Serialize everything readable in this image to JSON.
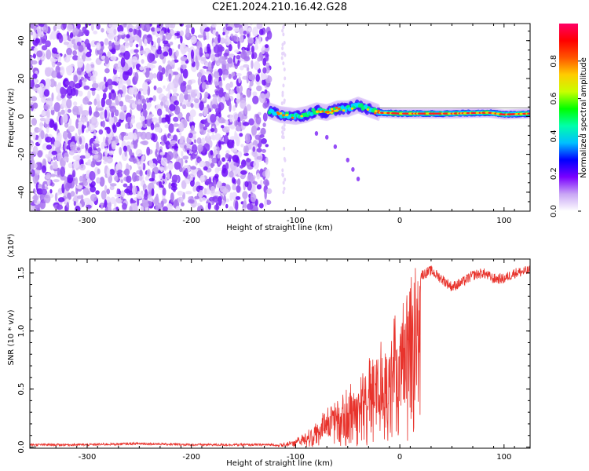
{
  "title": "C2E1.2024.210.16.42.G28",
  "chart_data": [
    {
      "type": "heatmap",
      "xlabel": "Height of straight line (km)",
      "ylabel": "Frequency (Hz)",
      "xlim": [
        -355,
        125
      ],
      "ylim": [
        -50,
        49
      ],
      "xticks": [
        -300,
        -200,
        -100,
        0,
        100
      ],
      "yticks": [
        -40,
        -20,
        0,
        20,
        40
      ],
      "colorbar": {
        "label": "Normalized spectral amplitude",
        "range": [
          0,
          1
        ],
        "ticks": [
          "0.0",
          "0.2",
          "0.4",
          "0.6",
          "0.8"
        ],
        "colors": [
          "#ffffff",
          "#c9a6f5",
          "#7a00ff",
          "#0000ff",
          "#00bfff",
          "#00ffaa",
          "#00ff00",
          "#c8ff00",
          "#ffcc00",
          "#ff5500",
          "#ff0000",
          "#ff0066"
        ]
      },
      "noise_region": {
        "x_range": [
          -355,
          -125
        ],
        "amplitude_range": [
          0.02,
          0.2
        ]
      },
      "signal_track": [
        {
          "x": -125,
          "y": 3
        },
        {
          "x": -115,
          "y": 1
        },
        {
          "x": -100,
          "y": 0
        },
        {
          "x": -90,
          "y": 1
        },
        {
          "x": -80,
          "y": 3
        },
        {
          "x": -70,
          "y": 2
        },
        {
          "x": -60,
          "y": 4
        },
        {
          "x": -50,
          "y": 4
        },
        {
          "x": -40,
          "y": 6
        },
        {
          "x": -30,
          "y": 4
        },
        {
          "x": -20,
          "y": 2
        },
        {
          "x": 0,
          "y": 1.5
        },
        {
          "x": 50,
          "y": 1.5
        },
        {
          "x": 85,
          "y": 2
        },
        {
          "x": 100,
          "y": 1
        },
        {
          "x": 125,
          "y": 1.5
        }
      ],
      "stray_points": [
        {
          "x": -80,
          "y": -9
        },
        {
          "x": -70,
          "y": -11
        },
        {
          "x": -62,
          "y": -16
        },
        {
          "x": -50,
          "y": -23
        },
        {
          "x": -45,
          "y": -28
        },
        {
          "x": -40,
          "y": -33
        }
      ]
    },
    {
      "type": "line",
      "xlabel": "Height of straight line (km)",
      "ylabel": "SNR (10 * v/v)",
      "y_multiplier": "(x10⁴)",
      "xlim": [
        -355,
        125
      ],
      "ylim": [
        -0.01,
        1.62
      ],
      "xticks": [
        -300,
        -200,
        -100,
        0,
        100
      ],
      "yticks": [
        "0.0",
        "0.5",
        "1.0",
        "1.5"
      ],
      "color": "#e8332c",
      "series": [
        {
          "x": [
            -355,
            -300,
            -250,
            -200,
            -150,
            -120,
            -110,
            -100,
            -90,
            -80,
            -70,
            -60,
            -50,
            -40,
            -30,
            -20,
            -10,
            0,
            10,
            20,
            30,
            40,
            50,
            60,
            70,
            80,
            90,
            100,
            110,
            125
          ],
          "y": [
            0.02,
            0.02,
            0.03,
            0.02,
            0.02,
            0.02,
            0.04,
            0.07,
            0.13,
            0.22,
            0.32,
            0.38,
            0.5,
            0.56,
            0.68,
            0.8,
            0.98,
            1.18,
            1.35,
            1.48,
            1.52,
            1.45,
            1.38,
            1.42,
            1.48,
            1.5,
            1.45,
            1.45,
            1.5,
            1.52
          ]
        }
      ]
    }
  ]
}
